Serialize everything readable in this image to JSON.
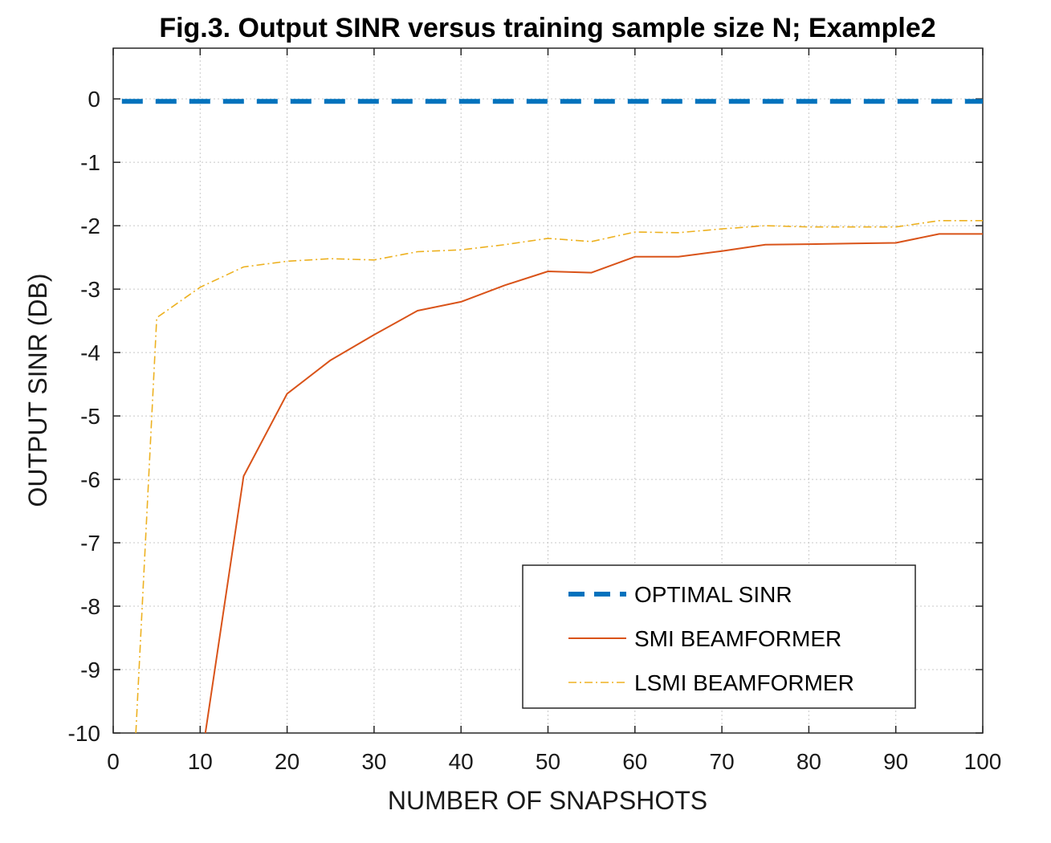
{
  "chart_data": {
    "type": "line",
    "title": "Fig.3. Output SINR versus training sample size N; Example2",
    "xlabel": "NUMBER OF SNAPSHOTS",
    "ylabel": "OUTPUT SINR (DB)",
    "xlim": [
      0,
      100
    ],
    "ylim": [
      -10,
      0.8
    ],
    "xticks": [
      0,
      10,
      20,
      30,
      40,
      50,
      60,
      70,
      80,
      90,
      100
    ],
    "yticks": [
      0,
      -1,
      -2,
      -3,
      -4,
      -5,
      -6,
      -7,
      -8,
      -9,
      -10
    ],
    "grid": true,
    "legend_position": "bottom-right",
    "series": [
      {
        "name": "OPTIMAL SINR",
        "style": "dashed-thick",
        "color": "#0072BD",
        "x": [
          1,
          100
        ],
        "y": [
          -0.04,
          -0.04
        ]
      },
      {
        "name": "SMI BEAMFORMER",
        "style": "solid",
        "color": "#D95319",
        "x": [
          10.6,
          15,
          20,
          25,
          30,
          35,
          40,
          45,
          50,
          55,
          60,
          65,
          70,
          75,
          80,
          85,
          90,
          95,
          100
        ],
        "y": [
          -10,
          -5.95,
          -4.65,
          -4.12,
          -3.72,
          -3.34,
          -3.2,
          -2.94,
          -2.72,
          -2.74,
          -2.49,
          -2.49,
          -2.4,
          -2.3,
          -2.29,
          -2.28,
          -2.27,
          -2.13,
          -2.13
        ]
      },
      {
        "name": "LSMI BEAMFORMER",
        "style": "dashdot",
        "color": "#EDB120",
        "x": [
          2.6,
          5,
          10,
          15,
          20,
          25,
          30,
          35,
          40,
          45,
          50,
          55,
          60,
          65,
          70,
          75,
          80,
          85,
          90,
          95,
          100
        ],
        "y": [
          -10,
          -3.45,
          -2.97,
          -2.65,
          -2.56,
          -2.52,
          -2.54,
          -2.41,
          -2.38,
          -2.3,
          -2.2,
          -2.25,
          -2.1,
          -2.11,
          -2.05,
          -2.0,
          -2.02,
          -2.02,
          -2.02,
          -1.92,
          -1.92
        ]
      }
    ]
  }
}
